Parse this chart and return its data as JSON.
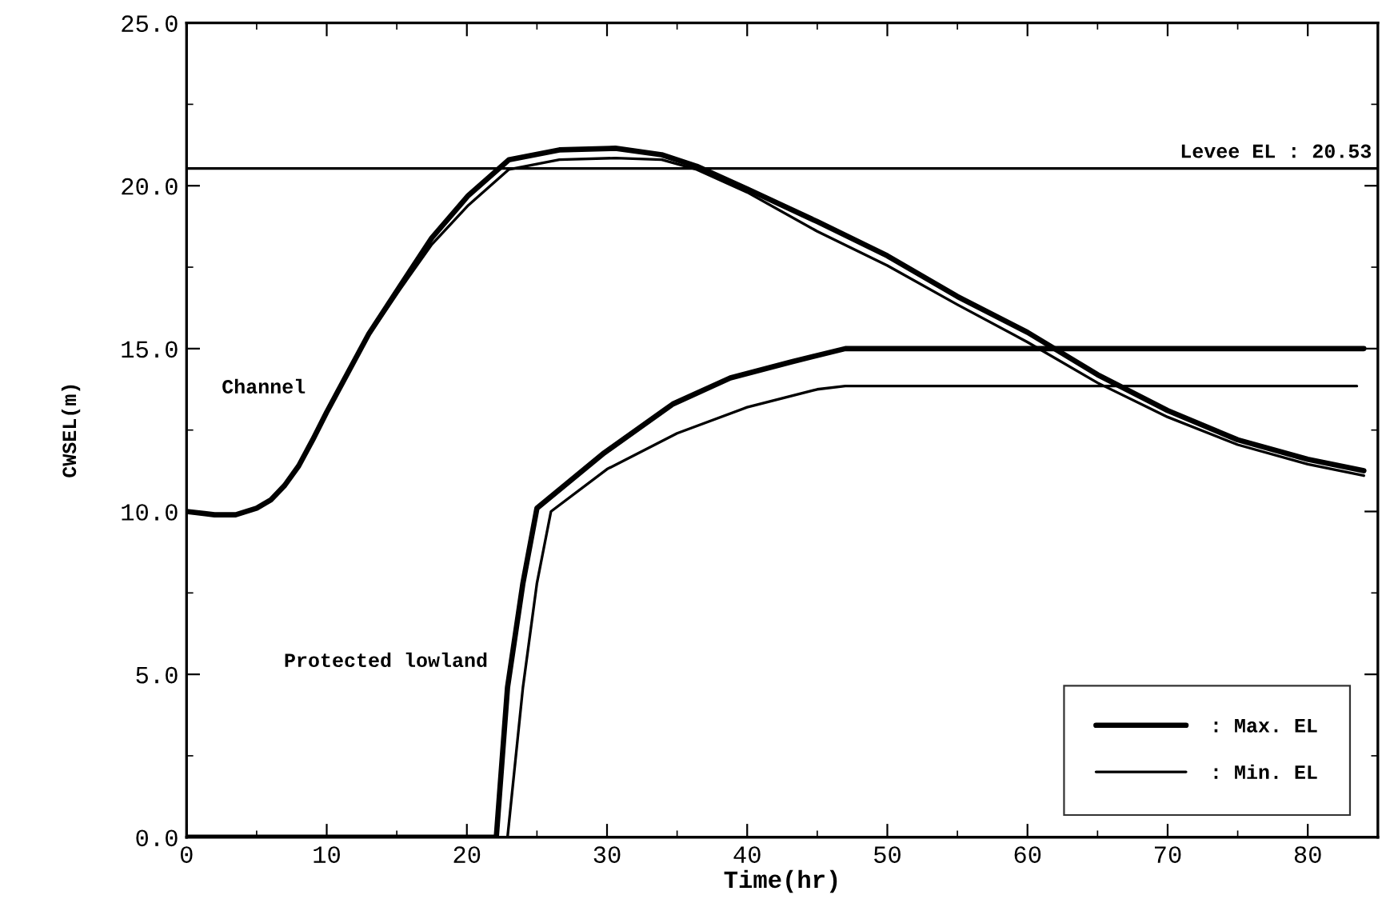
{
  "chart_data": {
    "type": "line",
    "xlabel": "Time(hr)",
    "ylabel": "CWSEL(m)",
    "xlim": [
      0,
      85
    ],
    "ylim": [
      0,
      25
    ],
    "xticks": [
      0,
      10,
      20,
      30,
      40,
      50,
      60,
      70,
      80
    ],
    "yticks": [
      {
        "value": 0,
        "label": "0.0"
      },
      {
        "value": 5,
        "label": "5.0"
      },
      {
        "value": 10,
        "label": "10.0"
      },
      {
        "value": 15,
        "label": "15.0"
      },
      {
        "value": 20,
        "label": "20.0"
      },
      {
        "value": 25,
        "label": "25.0"
      }
    ],
    "grid": false,
    "legend": "bottom right",
    "marker": "none",
    "line_style": "solid",
    "ref_lines": [
      {
        "axis": "y",
        "value": 20.53,
        "label": "Levee EL : 20.53",
        "color": "#000000"
      }
    ],
    "annotations": [
      {
        "text": "Channel",
        "x": 10,
        "y": 13.0
      },
      {
        "text": "Protected lowland",
        "x": 23,
        "y": 4.6
      }
    ],
    "series": [
      {
        "name": ": Max. EL",
        "color": "#000000",
        "x": [
          0,
          2,
          3.5,
          5,
          6,
          7,
          8,
          9,
          10,
          11,
          13,
          15.2,
          17.5,
          20.1,
          23,
          26.6,
          30.6,
          33.9,
          36.4,
          40,
          45,
          50,
          55,
          60,
          65,
          70,
          75,
          80,
          84
        ],
        "values": [
          10.0,
          9.9,
          9.9,
          10.1,
          10.35,
          10.8,
          11.4,
          12.2,
          13.05,
          13.85,
          15.45,
          16.9,
          18.4,
          19.7,
          20.8,
          21.1,
          21.15,
          20.95,
          20.6,
          19.9,
          18.9,
          17.85,
          16.6,
          15.5,
          14.2,
          13.1,
          12.2,
          11.6,
          11.25
        ]
      },
      {
        "name": ": Min. EL",
        "color": "#000000",
        "x": [
          0,
          2,
          3.5,
          5,
          6,
          7,
          8,
          9,
          10,
          11,
          13,
          15.2,
          17.5,
          20.1,
          23,
          26.6,
          30.6,
          33.9,
          36.4,
          40,
          45,
          50,
          55,
          60,
          65,
          70,
          75,
          80,
          84
        ],
        "values": [
          10.0,
          9.9,
          9.9,
          10.1,
          10.35,
          10.8,
          11.4,
          12.2,
          13.05,
          13.85,
          15.4,
          16.8,
          18.2,
          19.4,
          20.5,
          20.8,
          20.85,
          20.8,
          20.5,
          19.8,
          18.6,
          17.55,
          16.35,
          15.2,
          13.95,
          12.9,
          12.05,
          11.45,
          11.1
        ]
      },
      {
        "color": "#000000",
        "x": [
          0,
          22.1,
          22.9,
          24,
          25,
          29.8,
          34.7,
          38.8,
          43.2,
          47,
          84
        ],
        "values": [
          0,
          0,
          4.6,
          7.8,
          10.1,
          11.8,
          13.3,
          14.1,
          14.6,
          15.0,
          15.0
        ]
      },
      {
        "color": "#000000",
        "x": [
          0,
          22.9,
          24,
          25,
          26,
          30,
          35,
          40,
          45,
          47,
          83.5
        ],
        "values": [
          0,
          0,
          4.6,
          7.8,
          10.0,
          11.3,
          12.4,
          13.2,
          13.75,
          13.85,
          13.85
        ]
      }
    ]
  }
}
